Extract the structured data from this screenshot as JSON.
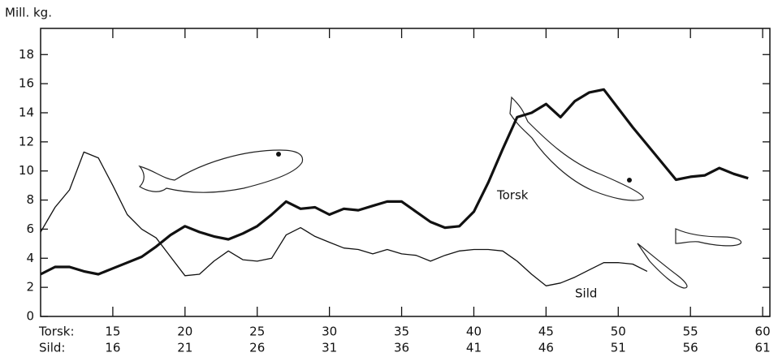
{
  "chart_data": {
    "type": "line",
    "y_label": "Mill. kg.",
    "x_label": "Torsk:",
    "x2_label": "Sild:",
    "xlim": [
      10,
      60.5
    ],
    "x2lim": [
      11,
      61.5
    ],
    "ylim": [
      0,
      19.8
    ],
    "xticks": [
      15,
      20,
      25,
      30,
      35,
      40,
      45,
      50,
      55,
      60
    ],
    "x2ticks": [
      16,
      21,
      26,
      31,
      36,
      41,
      46,
      51,
      56,
      61
    ],
    "yticks": [
      0,
      2,
      4,
      6,
      8,
      10,
      12,
      14,
      16,
      18
    ],
    "series": [
      {
        "name": "Torsk",
        "color": "#111111",
        "width": 3.2,
        "axis": "x",
        "x": [
          10,
          11,
          12,
          13,
          14,
          15,
          16,
          17,
          18,
          19,
          20,
          21,
          22,
          23,
          24,
          25,
          26,
          27,
          28,
          29,
          30,
          31,
          32,
          33,
          34,
          35,
          36,
          37,
          38,
          39,
          40,
          41,
          42,
          43,
          44,
          45,
          46,
          47,
          48,
          49,
          50,
          51,
          52,
          53,
          54,
          55,
          56,
          57,
          58,
          59
        ],
        "values": [
          2.9,
          3.4,
          3.4,
          3.1,
          2.9,
          3.3,
          3.7,
          4.1,
          4.8,
          5.6,
          6.2,
          5.8,
          5.5,
          5.3,
          5.7,
          6.2,
          7.0,
          7.9,
          7.4,
          7.5,
          7.0,
          7.4,
          7.3,
          7.6,
          7.9,
          7.9,
          7.2,
          6.5,
          6.1,
          6.2,
          7.2,
          9.2,
          11.5,
          13.7,
          14.0,
          14.6,
          13.7,
          14.8,
          15.4,
          15.6,
          14.3,
          13.0,
          11.8,
          10.6,
          9.4,
          9.6,
          9.7,
          10.2,
          9.8,
          9.5
        ]
      },
      {
        "name": "Sild",
        "color": "#111111",
        "width": 1.3,
        "axis": "x2",
        "x": [
          11,
          12,
          13,
          14,
          15,
          16,
          17,
          18,
          19,
          20,
          21,
          22,
          23,
          24,
          25,
          26,
          27,
          28,
          29,
          30,
          31,
          32,
          33,
          34,
          35,
          36,
          37,
          38,
          39,
          40,
          41,
          42,
          43,
          44,
          45,
          46,
          47,
          48,
          49,
          50,
          51,
          52,
          53
        ],
        "values": [
          5.8,
          7.5,
          8.7,
          11.3,
          10.9,
          9.0,
          7.0,
          6.0,
          5.4,
          4.1,
          2.8,
          2.9,
          3.8,
          4.5,
          3.9,
          3.8,
          4.0,
          5.6,
          6.1,
          5.5,
          5.1,
          4.7,
          4.6,
          4.3,
          4.6,
          4.3,
          4.2,
          3.8,
          4.2,
          4.5,
          4.6,
          4.6,
          4.5,
          3.8,
          2.9,
          2.1,
          2.3,
          2.7,
          3.2,
          3.7,
          3.7,
          3.6,
          3.1
        ]
      }
    ]
  }
}
